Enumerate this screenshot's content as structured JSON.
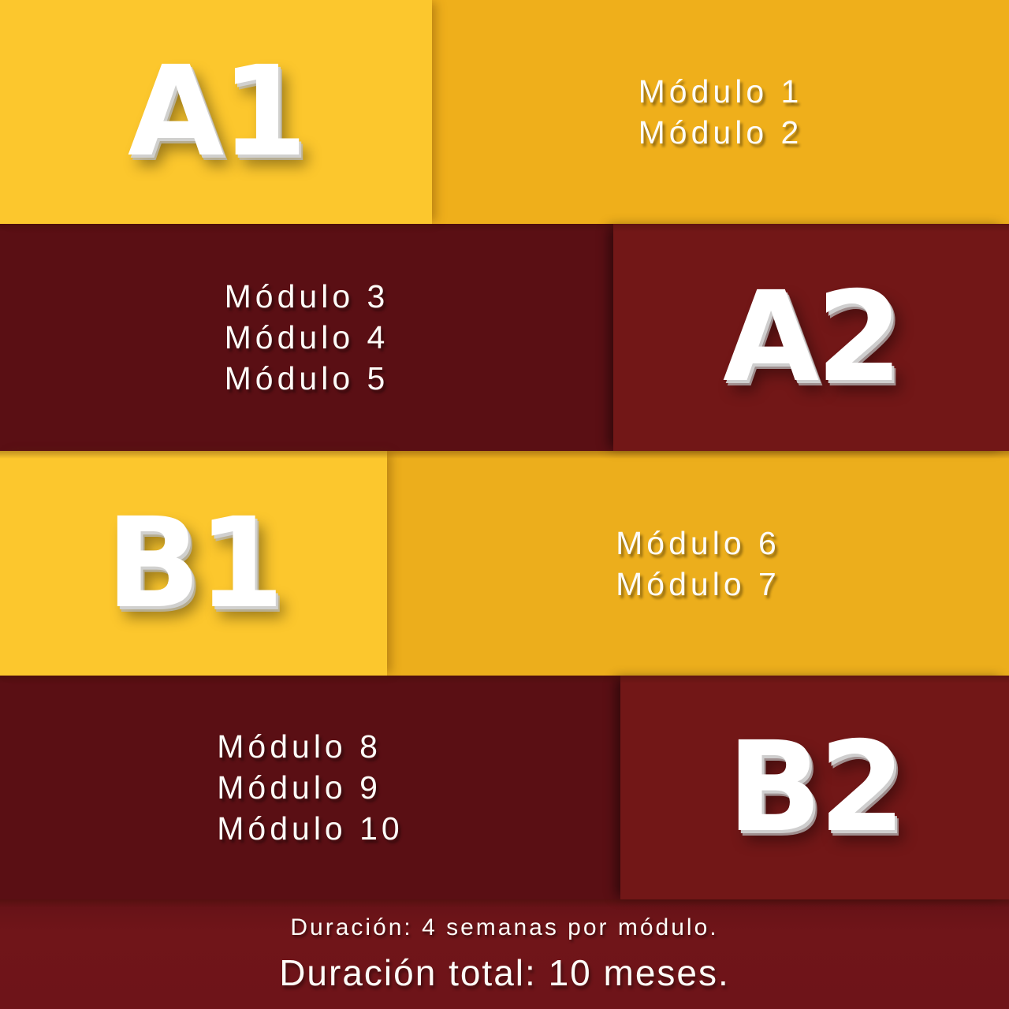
{
  "bands": [
    {
      "level": "A1",
      "modules": [
        "Módulo 1",
        "Módulo 2"
      ]
    },
    {
      "level": "A2",
      "modules": [
        "Módulo 3",
        "Módulo 4",
        "Módulo 5"
      ]
    },
    {
      "level": "B1",
      "modules": [
        "Módulo 6",
        "Módulo 7"
      ]
    },
    {
      "level": "B2",
      "modules": [
        "Módulo 8",
        "Módulo 9",
        "Módulo 10"
      ]
    }
  ],
  "footer": {
    "duration_per_module": "Duración: 4 semanas por módulo.",
    "duration_total": "Duración total: 10 meses."
  },
  "colors": {
    "yellow_bright": "#FCC72D",
    "amber": "#EFAF1B",
    "maroon_dark": "#5A0F14",
    "red": "#721717",
    "footer_maroon": "#6E1419",
    "text": "#FFFFFF"
  }
}
